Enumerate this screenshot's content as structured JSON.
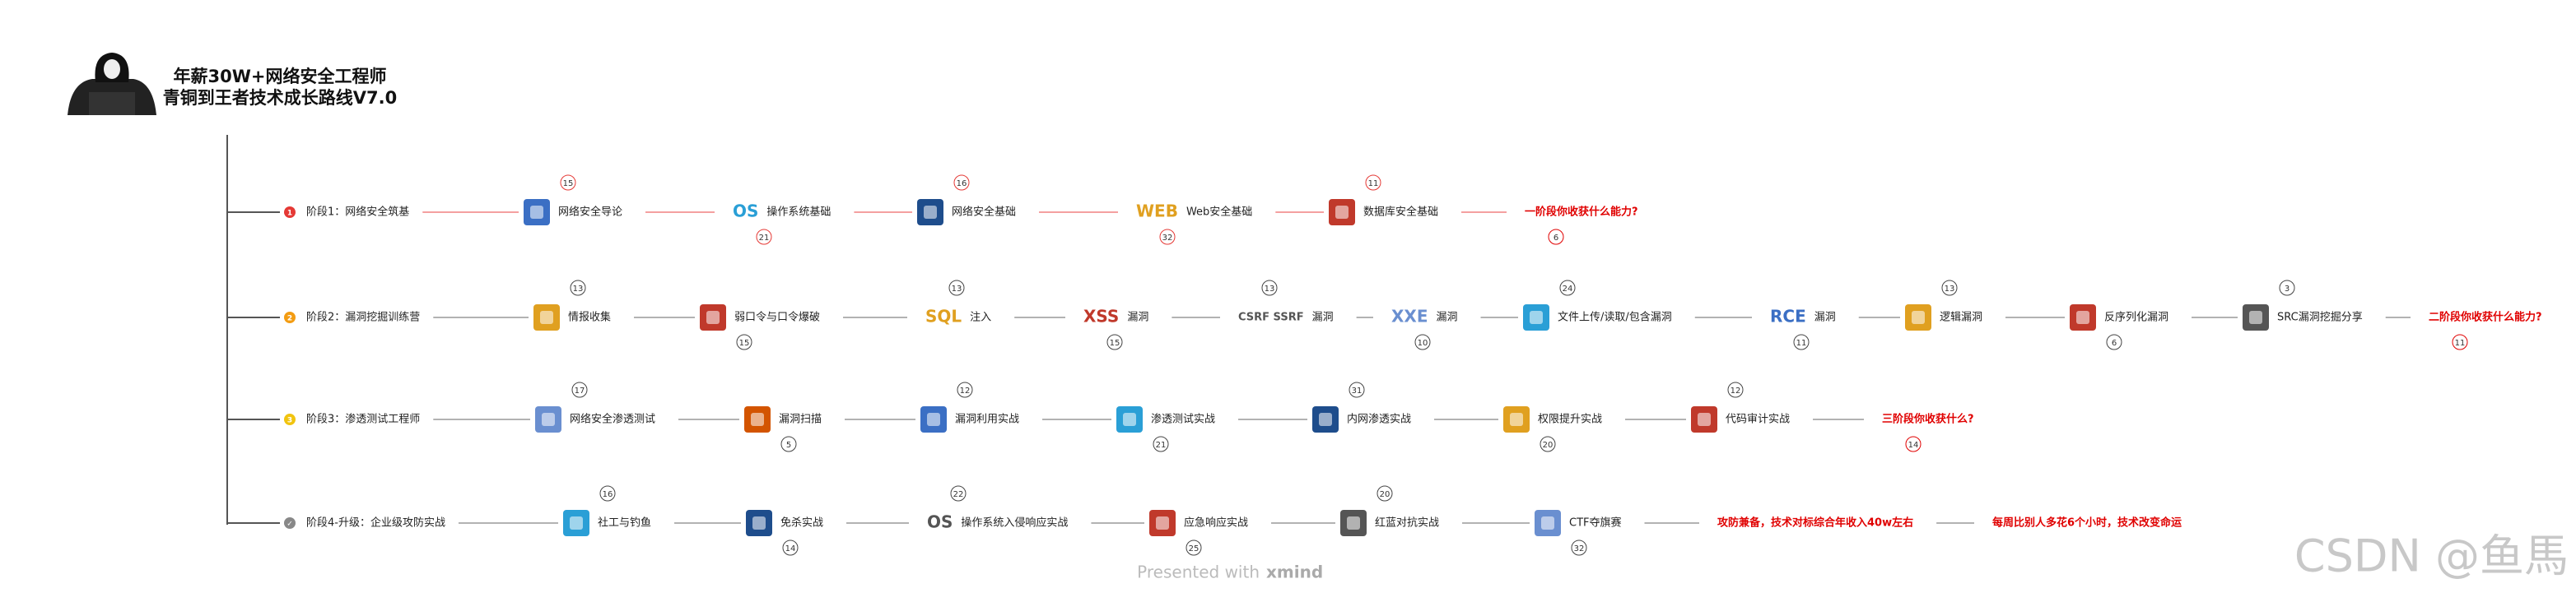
{
  "header": {
    "title_lines": [
      "年薪30W+网络安全工程师",
      "青铜到王者技术成长路线V7.0"
    ]
  },
  "stages": [
    {
      "marker": "1",
      "marker_color": "#e53935",
      "line_color": "#f08080",
      "label": "阶段1：网络安全筑基",
      "nodes": [
        {
          "label": "网络安全导论",
          "badge": "15"
        },
        {
          "label": "操作系统基础",
          "badge": "21",
          "icon_text": "OS"
        },
        {
          "label": "网络安全基础",
          "badge": "16"
        },
        {
          "label": "Web安全基础",
          "badge": "32",
          "icon_text": "WEB"
        },
        {
          "label": "数据库安全基础",
          "badge": "11"
        },
        {
          "label": "一阶段你收获什么能力?",
          "badge": "6",
          "color": "#e00000"
        }
      ]
    },
    {
      "marker": "2",
      "marker_color": "#f39c12",
      "line_color": "#999999",
      "label": "阶段2：漏洞挖掘训练营",
      "nodes": [
        {
          "label": "情报收集",
          "badge": "13"
        },
        {
          "label": "弱口令与口令爆破",
          "badge": "15"
        },
        {
          "label": "注入",
          "badge": "13",
          "icon_text": "SQL"
        },
        {
          "label": "漏洞",
          "badge": "15",
          "icon_text": "XSS"
        },
        {
          "label": "漏洞",
          "badge": "13",
          "icon_text": "CSRF SSRF"
        },
        {
          "label": "漏洞",
          "badge": "10",
          "icon_text": "XXE"
        },
        {
          "label": "文件上传/读取/包含漏洞",
          "badge": "24"
        },
        {
          "label": "漏洞",
          "badge": "11",
          "icon_text": "RCE"
        },
        {
          "label": "逻辑漏洞",
          "badge": "13"
        },
        {
          "label": "反序列化漏洞",
          "badge": "6"
        },
        {
          "label": "SRC漏洞挖掘分享",
          "badge": "3"
        },
        {
          "label": "二阶段你收获什么能力?",
          "badge": "11",
          "color": "#e00000"
        }
      ]
    },
    {
      "marker": "3",
      "marker_color": "#f1c40f",
      "line_color": "#999999",
      "label": "阶段3：渗透测试工程师",
      "nodes": [
        {
          "label": "网络安全渗透测试",
          "badge": "17"
        },
        {
          "label": "漏洞扫描",
          "badge": "5"
        },
        {
          "label": "漏洞利用实战",
          "badge": "12"
        },
        {
          "label": "渗透测试实战",
          "badge": "21"
        },
        {
          "label": "内网渗透实战",
          "badge": "31"
        },
        {
          "label": "权限提升实战",
          "badge": "20"
        },
        {
          "label": "代码审计实战",
          "badge": "12"
        },
        {
          "label": "三阶段你收获什么?",
          "badge": "14",
          "color": "#e00000"
        }
      ]
    },
    {
      "marker": "✓",
      "marker_color": "#888888",
      "line_color": "#999999",
      "label": "阶段4-升级：企业级攻防实战",
      "nodes": [
        {
          "label": "社工与钓鱼",
          "badge": "16"
        },
        {
          "label": "免杀实战",
          "badge": "14"
        },
        {
          "label": "操作系统入侵响应实战",
          "badge": "22",
          "icon_text": "OS"
        },
        {
          "label": "应急响应实战",
          "badge": "25"
        },
        {
          "label": "红蓝对抗实战",
          "badge": "20"
        },
        {
          "label": "CTF夺旗赛",
          "badge": "32"
        },
        {
          "label": "攻防兼备，技术对标综合年收入40w左右",
          "color": "#e00000"
        },
        {
          "label": "每周比别人多花6个小时，技术改变命运",
          "color": "#e00000"
        }
      ]
    }
  ],
  "footer": {
    "presented": "Presented with",
    "brand": "xmind",
    "watermark": "CSDN @鱼馬"
  }
}
